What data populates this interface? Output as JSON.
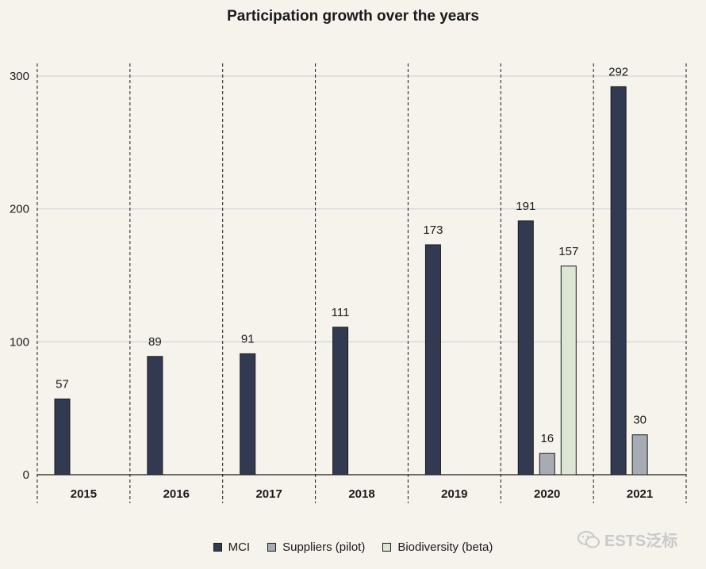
{
  "chart_data": {
    "type": "bar",
    "title": "Participation growth over the years",
    "categories": [
      "2015",
      "2016",
      "2017",
      "2018",
      "2019",
      "2020",
      "2021"
    ],
    "series": [
      {
        "name": "MCI",
        "color": "#323a52",
        "values": [
          57,
          89,
          91,
          111,
          173,
          191,
          292
        ]
      },
      {
        "name": "Suppliers (pilot)",
        "color": "#a7abb4",
        "values": [
          null,
          null,
          null,
          null,
          null,
          16,
          30
        ]
      },
      {
        "name": "Biodiversity (beta)",
        "color": "#dde6d3",
        "values": [
          null,
          null,
          null,
          null,
          null,
          157,
          null
        ]
      }
    ],
    "yticks": [
      0,
      100,
      200,
      300
    ],
    "ylim": [
      0,
      310
    ],
    "grid": true,
    "legend_position": "bottom"
  },
  "watermark": {
    "text": "ESTS泛标"
  }
}
